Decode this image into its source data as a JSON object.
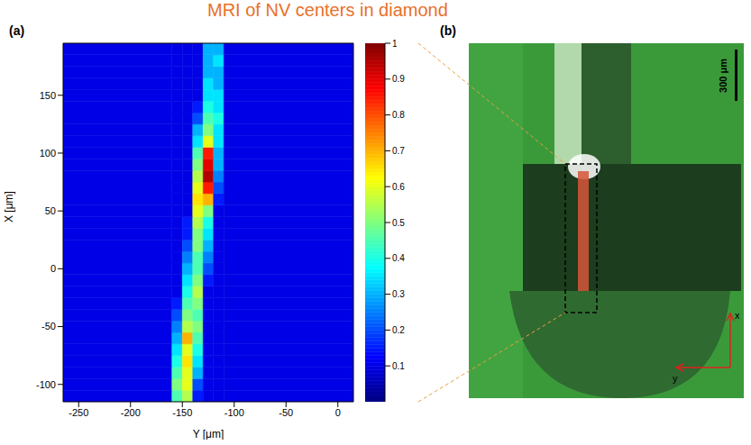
{
  "title": "MRI of NV centers in diamond",
  "panel_labels": [
    "(a)",
    "(b)"
  ],
  "chart_data": {
    "type": "heatmap",
    "xlabel": "Y [μm]",
    "ylabel": "X [μm]",
    "x_edges": [
      -265,
      -160,
      -150,
      -140,
      -130,
      -120,
      -110,
      15
    ],
    "y_edges": [
      -115,
      -105,
      -95,
      -85,
      -75,
      -65,
      -55,
      -45,
      -35,
      -25,
      -15,
      -5,
      5,
      15,
      25,
      35,
      45,
      55,
      65,
      75,
      85,
      95,
      105,
      115,
      125,
      135,
      145,
      155,
      165,
      175,
      185,
      195
    ],
    "values": [
      [
        0.1,
        0.45,
        0.55,
        0.15,
        0.1,
        0.1,
        0.1
      ],
      [
        0.1,
        0.5,
        0.6,
        0.2,
        0.1,
        0.1,
        0.1
      ],
      [
        0.1,
        0.45,
        0.6,
        0.3,
        0.1,
        0.1,
        0.1
      ],
      [
        0.1,
        0.4,
        0.65,
        0.35,
        0.1,
        0.1,
        0.1
      ],
      [
        0.1,
        0.35,
        0.6,
        0.4,
        0.1,
        0.1,
        0.1
      ],
      [
        0.1,
        0.3,
        0.7,
        0.45,
        0.1,
        0.1,
        0.1
      ],
      [
        0.1,
        0.25,
        0.55,
        0.5,
        0.1,
        0.1,
        0.1
      ],
      [
        0.1,
        0.2,
        0.5,
        0.45,
        0.1,
        0.1,
        0.1
      ],
      [
        0.1,
        0.15,
        0.45,
        0.5,
        0.1,
        0.1,
        0.1
      ],
      [
        0.1,
        0.1,
        0.4,
        0.55,
        0.1,
        0.1,
        0.1
      ],
      [
        0.1,
        0.1,
        0.35,
        0.5,
        0.15,
        0.1,
        0.1
      ],
      [
        0.1,
        0.1,
        0.3,
        0.45,
        0.2,
        0.1,
        0.1
      ],
      [
        0.1,
        0.1,
        0.25,
        0.45,
        0.25,
        0.1,
        0.1
      ],
      [
        0.1,
        0.1,
        0.2,
        0.5,
        0.3,
        0.1,
        0.1
      ],
      [
        0.1,
        0.1,
        0.15,
        0.5,
        0.35,
        0.1,
        0.1
      ],
      [
        0.1,
        0.1,
        0.15,
        0.55,
        0.4,
        0.1,
        0.1
      ],
      [
        0.1,
        0.1,
        0.1,
        0.6,
        0.5,
        0.1,
        0.1
      ],
      [
        0.1,
        0.1,
        0.1,
        0.65,
        0.7,
        0.15,
        0.1
      ],
      [
        0.1,
        0.1,
        0.1,
        0.6,
        0.85,
        0.2,
        0.1
      ],
      [
        0.1,
        0.1,
        0.1,
        0.55,
        0.95,
        0.25,
        0.1
      ],
      [
        0.1,
        0.1,
        0.1,
        0.5,
        0.9,
        0.3,
        0.1
      ],
      [
        0.1,
        0.1,
        0.1,
        0.45,
        0.85,
        0.3,
        0.1
      ],
      [
        0.1,
        0.1,
        0.1,
        0.35,
        0.6,
        0.35,
        0.1
      ],
      [
        0.1,
        0.1,
        0.1,
        0.3,
        0.5,
        0.35,
        0.1
      ],
      [
        0.1,
        0.1,
        0.1,
        0.2,
        0.45,
        0.4,
        0.1
      ],
      [
        0.1,
        0.1,
        0.1,
        0.15,
        0.4,
        0.35,
        0.1
      ],
      [
        0.1,
        0.1,
        0.1,
        0.1,
        0.35,
        0.35,
        0.1
      ],
      [
        0.1,
        0.1,
        0.1,
        0.1,
        0.35,
        0.3,
        0.1
      ],
      [
        0.1,
        0.1,
        0.1,
        0.1,
        0.3,
        0.3,
        0.1
      ],
      [
        0.1,
        0.1,
        0.1,
        0.1,
        0.3,
        0.35,
        0.1
      ],
      [
        0.1,
        0.1,
        0.1,
        0.1,
        0.3,
        0.3,
        0.1
      ]
    ],
    "xlim": [
      -265,
      15
    ],
    "ylim": [
      -115,
      195
    ],
    "xticks": [
      -250,
      -200,
      -150,
      -100,
      -50,
      0
    ],
    "yticks": [
      -100,
      -50,
      0,
      50,
      100,
      150
    ],
    "colorbar": {
      "range": [
        0,
        1
      ],
      "ticks": [
        0.1,
        0.2,
        0.3,
        0.4,
        0.5,
        0.6,
        0.7,
        0.8,
        0.9,
        1
      ]
    }
  },
  "panel_b": {
    "scale_bar": "300 μm",
    "axis_labels": [
      "x",
      "y"
    ]
  }
}
